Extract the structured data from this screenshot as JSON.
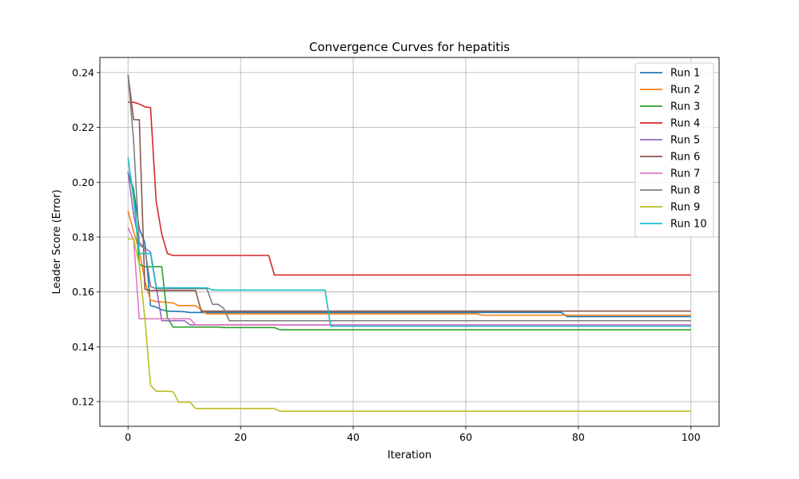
{
  "chart_data": {
    "type": "line",
    "title": "Convergence Curves for hepatitis",
    "xlabel": "Iteration",
    "ylabel": "Leader Score (Error)",
    "xlim": [
      -5,
      105
    ],
    "ylim": [
      0.111,
      0.2455
    ],
    "xticks": [
      0,
      20,
      40,
      60,
      80,
      100
    ],
    "yticks": [
      0.12,
      0.14,
      0.16,
      0.18,
      0.2,
      0.22,
      0.24
    ],
    "ytick_labels": [
      "0.12",
      "0.14",
      "0.16",
      "0.18",
      "0.20",
      "0.22",
      "0.24"
    ],
    "grid": true,
    "legend_position": "top-right",
    "series": [
      {
        "name": "Run 1",
        "color": "#1f77b4",
        "points": [
          [
            0,
            0.2035
          ],
          [
            1,
            0.197
          ],
          [
            2,
            0.183
          ],
          [
            3,
            0.178
          ],
          [
            4,
            0.155
          ],
          [
            5,
            0.1545
          ],
          [
            6,
            0.1535
          ],
          [
            7,
            0.153
          ],
          [
            10,
            0.1528
          ],
          [
            11,
            0.1525
          ],
          [
            40,
            0.1525
          ],
          [
            77,
            0.1525
          ],
          [
            78,
            0.151
          ],
          [
            100,
            0.151
          ]
        ]
      },
      {
        "name": "Run 2",
        "color": "#ff7f0e",
        "points": [
          [
            0,
            0.1895
          ],
          [
            1,
            0.182
          ],
          [
            2,
            0.175
          ],
          [
            3,
            0.164
          ],
          [
            4,
            0.157
          ],
          [
            5,
            0.1565
          ],
          [
            8,
            0.156
          ],
          [
            9,
            0.155
          ],
          [
            12,
            0.155
          ],
          [
            13,
            0.1535
          ],
          [
            14,
            0.152
          ],
          [
            62,
            0.152
          ],
          [
            63,
            0.1515
          ],
          [
            100,
            0.1515
          ]
        ]
      },
      {
        "name": "Run 3",
        "color": "#2ca02c",
        "points": [
          [
            0,
            0.2035
          ],
          [
            1,
            0.1975
          ],
          [
            2,
            0.17
          ],
          [
            3,
            0.1692
          ],
          [
            6,
            0.1692
          ],
          [
            7,
            0.1505
          ],
          [
            8,
            0.1472
          ],
          [
            16,
            0.1472
          ],
          [
            17,
            0.147
          ],
          [
            26,
            0.147
          ],
          [
            27,
            0.1462
          ],
          [
            100,
            0.1462
          ]
        ]
      },
      {
        "name": "Run 4",
        "color": "#d62728",
        "points": [
          [
            0,
            0.2292
          ],
          [
            1,
            0.2292
          ],
          [
            2,
            0.2285
          ],
          [
            3,
            0.2275
          ],
          [
            4,
            0.2272
          ],
          [
            5,
            0.193
          ],
          [
            6,
            0.181
          ],
          [
            7,
            0.174
          ],
          [
            8,
            0.1733
          ],
          [
            25,
            0.1733
          ],
          [
            26,
            0.1662
          ],
          [
            100,
            0.1662
          ]
        ]
      },
      {
        "name": "Run 5",
        "color": "#9467bd",
        "points": [
          [
            0,
            0.204
          ],
          [
            1,
            0.188
          ],
          [
            2,
            0.178
          ],
          [
            3,
            0.176
          ],
          [
            4,
            0.1745
          ],
          [
            5,
            0.162
          ],
          [
            6,
            0.1495
          ],
          [
            10,
            0.1495
          ],
          [
            11,
            0.148
          ],
          [
            100,
            0.148
          ]
        ]
      },
      {
        "name": "Run 6",
        "color": "#8c564b",
        "points": [
          [
            0,
            0.2393
          ],
          [
            1,
            0.2228
          ],
          [
            2,
            0.2228
          ],
          [
            3,
            0.161
          ],
          [
            4,
            0.1605
          ],
          [
            12,
            0.1605
          ],
          [
            13,
            0.153
          ],
          [
            100,
            0.153
          ]
        ]
      },
      {
        "name": "Run 7",
        "color": "#e377c2",
        "points": [
          [
            0,
            0.1835
          ],
          [
            1,
            0.179
          ],
          [
            2,
            0.1502
          ],
          [
            4,
            0.1502
          ],
          [
            5,
            0.1502
          ],
          [
            11,
            0.1502
          ],
          [
            12,
            0.148
          ],
          [
            100,
            0.148
          ]
        ]
      },
      {
        "name": "Run 8",
        "color": "#7f7f7f",
        "points": [
          [
            0,
            0.2393
          ],
          [
            1,
            0.215
          ],
          [
            2,
            0.177
          ],
          [
            3,
            0.176
          ],
          [
            4,
            0.162
          ],
          [
            5,
            0.1612
          ],
          [
            13,
            0.1612
          ],
          [
            14,
            0.1612
          ],
          [
            15,
            0.1555
          ],
          [
            16,
            0.1555
          ],
          [
            17,
            0.154
          ],
          [
            18,
            0.1495
          ],
          [
            100,
            0.1495
          ]
        ]
      },
      {
        "name": "Run 9",
        "color": "#bcbd22",
        "points": [
          [
            0,
            0.1793
          ],
          [
            1,
            0.1793
          ],
          [
            2,
            0.17
          ],
          [
            3,
            0.15
          ],
          [
            4,
            0.126
          ],
          [
            5,
            0.1238
          ],
          [
            7,
            0.1238
          ],
          [
            8,
            0.1236
          ],
          [
            9,
            0.1198
          ],
          [
            11,
            0.1198
          ],
          [
            12,
            0.1175
          ],
          [
            26,
            0.1175
          ],
          [
            27,
            0.1165
          ],
          [
            100,
            0.1165
          ]
        ]
      },
      {
        "name": "Run 10",
        "color": "#17becf",
        "points": [
          [
            0,
            0.209
          ],
          [
            1,
            0.194
          ],
          [
            2,
            0.174
          ],
          [
            3,
            0.174
          ],
          [
            4,
            0.174
          ],
          [
            5,
            0.1615
          ],
          [
            14,
            0.1615
          ],
          [
            15,
            0.1607
          ],
          [
            35,
            0.1607
          ],
          [
            36,
            0.1475
          ],
          [
            100,
            0.1475
          ]
        ]
      }
    ]
  }
}
